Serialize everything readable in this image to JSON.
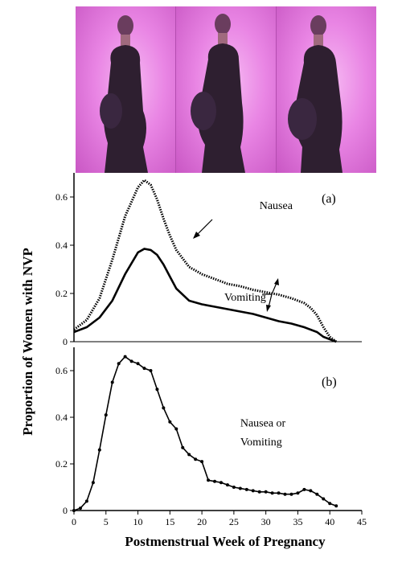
{
  "photos": [
    {
      "name": "pregnant-woman-photo-1"
    },
    {
      "name": "pregnant-woman-photo-2"
    },
    {
      "name": "pregnant-woman-photo-3"
    }
  ],
  "chart_data": [
    {
      "type": "line",
      "panel_label": "(a)",
      "title": "",
      "xlabel": "",
      "ylabel": "Proportion of Women with NVP",
      "xlim": [
        0,
        45
      ],
      "ylim": [
        0,
        0.7
      ],
      "yticks": [
        0,
        0.2,
        0.4,
        0.6
      ],
      "ytick_labels": [
        "0",
        "0.2",
        "0.4",
        "0.6"
      ],
      "grid": false,
      "annotations": [
        {
          "text": "Nausea",
          "x": 29,
          "y": 0.55
        },
        {
          "text": "Vomiting",
          "x": 23.5,
          "y": 0.17
        }
      ],
      "series": [
        {
          "name": "Nausea",
          "x": [
            0,
            2,
            4,
            6,
            8,
            10,
            11,
            12,
            13,
            14,
            15,
            16,
            18,
            20,
            22,
            24,
            26,
            28,
            30,
            32,
            34,
            36,
            37,
            38,
            39,
            40,
            41
          ],
          "y": [
            0.05,
            0.09,
            0.18,
            0.34,
            0.52,
            0.64,
            0.67,
            0.65,
            0.59,
            0.51,
            0.44,
            0.38,
            0.31,
            0.28,
            0.26,
            0.24,
            0.23,
            0.215,
            0.205,
            0.195,
            0.18,
            0.16,
            0.14,
            0.11,
            0.06,
            0.02,
            0
          ]
        },
        {
          "name": "Vomiting",
          "x": [
            0,
            2,
            4,
            6,
            8,
            10,
            11,
            12,
            13,
            14,
            15,
            16,
            18,
            20,
            22,
            24,
            26,
            28,
            30,
            32,
            34,
            36,
            38,
            39,
            40,
            41
          ],
          "y": [
            0.04,
            0.06,
            0.1,
            0.17,
            0.28,
            0.37,
            0.385,
            0.38,
            0.36,
            0.32,
            0.27,
            0.22,
            0.17,
            0.155,
            0.145,
            0.135,
            0.125,
            0.115,
            0.1,
            0.085,
            0.075,
            0.06,
            0.04,
            0.02,
            0.01,
            0
          ]
        }
      ]
    },
    {
      "type": "line",
      "panel_label": "(b)",
      "title": "",
      "xlabel": "Postmenstrual Week of Pregnancy",
      "ylabel": "Proportion of Women with NVP",
      "xlim": [
        0,
        45
      ],
      "ylim": [
        0,
        0.7
      ],
      "xticks": [
        0,
        5,
        10,
        15,
        20,
        25,
        30,
        35,
        40,
        45
      ],
      "xtick_labels": [
        "0",
        "5",
        "10",
        "15",
        "20",
        "25",
        "30",
        "35",
        "40",
        "45"
      ],
      "yticks": [
        0,
        0.2,
        0.4,
        0.6
      ],
      "ytick_labels": [
        "0",
        "0.2",
        "0.4",
        "0.6"
      ],
      "grid": false,
      "annotations": [
        {
          "text": "Nausea or",
          "x": 26,
          "y": 0.36
        },
        {
          "text": "Vomiting",
          "x": 26,
          "y": 0.28
        }
      ],
      "series": [
        {
          "name": "Nausea or Vomiting",
          "x": [
            0,
            1,
            2,
            3,
            4,
            5,
            6,
            7,
            8,
            9,
            10,
            11,
            12,
            13,
            14,
            15,
            16,
            17,
            18,
            19,
            20,
            21,
            22,
            23,
            24,
            25,
            26,
            27,
            28,
            29,
            30,
            31,
            32,
            33,
            34,
            35,
            36,
            37,
            38,
            39,
            40,
            41
          ],
          "y": [
            0.0,
            0.01,
            0.04,
            0.12,
            0.26,
            0.41,
            0.55,
            0.63,
            0.66,
            0.64,
            0.63,
            0.61,
            0.6,
            0.52,
            0.44,
            0.38,
            0.35,
            0.27,
            0.24,
            0.22,
            0.21,
            0.13,
            0.125,
            0.12,
            0.11,
            0.1,
            0.095,
            0.09,
            0.085,
            0.08,
            0.08,
            0.075,
            0.075,
            0.07,
            0.07,
            0.075,
            0.09,
            0.085,
            0.07,
            0.05,
            0.03,
            0.02
          ]
        }
      ]
    }
  ]
}
